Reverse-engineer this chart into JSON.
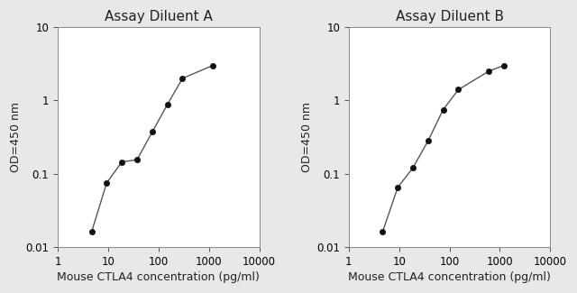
{
  "panel_A": {
    "title": "Assay Diluent A",
    "x": [
      4.69,
      9.38,
      18.75,
      37.5,
      75,
      150,
      300,
      1200
    ],
    "y": [
      0.016,
      0.075,
      0.145,
      0.155,
      0.37,
      0.88,
      2.0,
      3.0
    ],
    "xlabel": "Mouse CTLA4 concentration (pg/ml)",
    "ylabel": "OD=450 nm",
    "xlim": [
      1,
      10000
    ],
    "ylim": [
      0.01,
      10
    ]
  },
  "panel_B": {
    "title": "Assay Diluent B",
    "x": [
      4.69,
      9.38,
      18.75,
      37.5,
      75,
      150,
      600,
      1200
    ],
    "y": [
      0.016,
      0.065,
      0.12,
      0.28,
      0.75,
      1.4,
      2.5,
      3.0
    ],
    "xlabel": "Mouse CTLA4 concentration (pg/ml)",
    "ylabel": "OD=450 nm",
    "xlim": [
      1,
      10000
    ],
    "ylim": [
      0.01,
      10
    ]
  },
  "line_color": "#555555",
  "marker_color": "#111111",
  "bg_color": "#e8e8e8",
  "plot_bg_color": "#ffffff",
  "title_fontsize": 11,
  "label_fontsize": 9,
  "tick_fontsize": 8.5,
  "ytick_labels": [
    "0.01",
    "0.1",
    "1",
    "10"
  ],
  "xtick_labels": [
    "1",
    "10",
    "100",
    "1000",
    "10000"
  ],
  "ytick_vals": [
    0.01,
    0.1,
    1,
    10
  ],
  "xtick_vals": [
    1,
    10,
    100,
    1000,
    10000
  ]
}
